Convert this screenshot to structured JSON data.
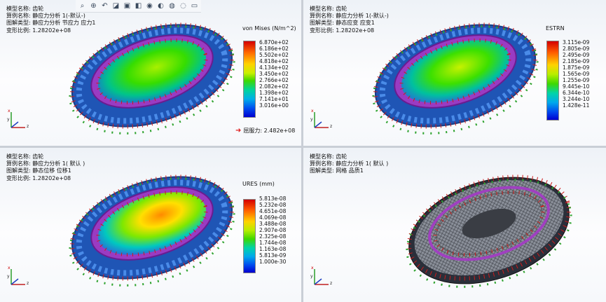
{
  "toolbar": {
    "icons": [
      "zoom-fit-icon",
      "zoom-area-icon",
      "previous-view-icon",
      "section-view-icon",
      "view-orientation-icon",
      "display-style-icon",
      "hide-show-icon",
      "edit-appearance-icon",
      "scene-icon",
      "view-settings-icon",
      "display-pane-icon"
    ]
  },
  "views": [
    {
      "info": [
        "模型名称: 齿轮",
        "算例名称: 静应力分析 1(-默认-)",
        "图解类型: 静应力分析 节应力 应力1",
        "变形比例: 1.28202e+08"
      ],
      "legend_title": "von Mises (N/m^2)",
      "ticks": [
        "6.870e+02",
        "6.186e+02",
        "5.502e+02",
        "4.818e+02",
        "4.134e+02",
        "3.450e+02",
        "2.766e+02",
        "2.082e+02",
        "1.398e+02",
        "7.141e+01",
        "3.016e+00"
      ],
      "yield_label": "屈服力: 2.482e+08"
    },
    {
      "info": [
        "模型名称: 齿轮",
        "算例名称: 静应力分析 1(-默认-)",
        "图解类型: 静态应变 应变1",
        "变形比例: 1.28202e+08"
      ],
      "legend_title": "ESTRN",
      "ticks": [
        "3.115e-09",
        "2.805e-09",
        "2.495e-09",
        "2.185e-09",
        "1.875e-09",
        "1.565e-09",
        "1.255e-09",
        "9.445e-10",
        "6.344e-10",
        "3.244e-10",
        "1.428e-11"
      ]
    },
    {
      "info": [
        "模型名称: 齿轮",
        "算例名称: 静应力分析 1( 默认 )",
        "图解类型: 静态位移 位移1",
        "变形比例: 1.28202e+08"
      ],
      "legend_title": "URES (mm)",
      "ticks": [
        "5.813e-08",
        "5.232e-08",
        "4.651e-08",
        "4.069e-08",
        "3.488e-08",
        "2.907e-08",
        "2.325e-08",
        "1.744e-08",
        "1.163e-08",
        "5.813e-09",
        "1.000e-30"
      ]
    },
    {
      "info": [
        "模型名称: 齿轮",
        "算例名称: 静应力分析 1( 默认 )",
        "图解类型: 网格 品质1"
      ]
    }
  ],
  "colors": {
    "legend_top": "#d40000",
    "legend_bottom": "#0000d0",
    "fixture_red": "#cc1b1b",
    "load_green": "#2fa32f",
    "mesh_purple": "#a040c0"
  }
}
